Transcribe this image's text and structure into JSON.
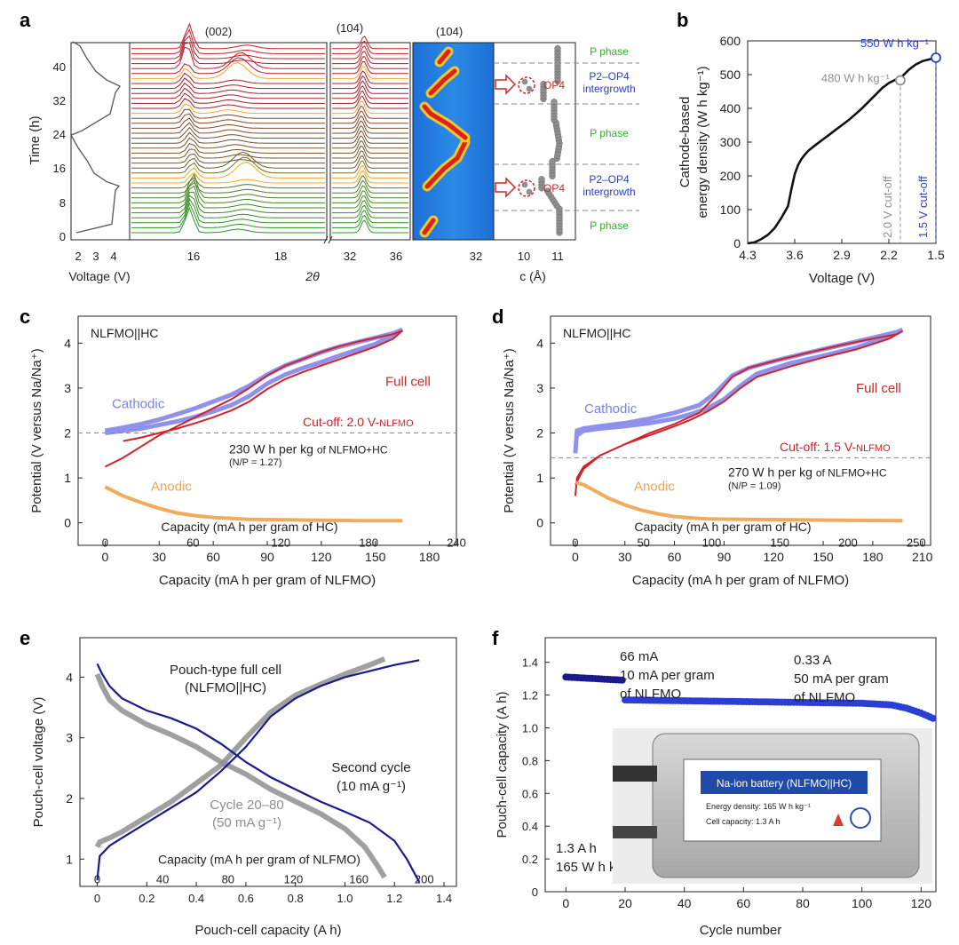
{
  "colors": {
    "axis": "#222222",
    "grid_dash": "#8a8a8a",
    "cathodic": "#7b7fe8",
    "full_cell": "#d2232a",
    "anodic": "#f0a24a",
    "navy": "#1a1a8c",
    "grey": "#8f8f8f",
    "blue": "#2b3fd4",
    "green": "#2ca02c",
    "pphase": "#3aaa35",
    "op4": "#d2232a",
    "intergrowth": "#2b3fbf",
    "orange_band": "#f5a623"
  },
  "panels": {
    "a": {
      "label": "a",
      "ylabel": "Time (h)",
      "yticks": [
        "0",
        "8",
        "16",
        "24",
        "32",
        "40"
      ],
      "voltage_xticks": [
        "2",
        "3",
        "4"
      ],
      "voltage_xlabel": "Voltage (V)",
      "xrd1_xticks": [
        "16",
        "18"
      ],
      "xrd2_xticks": [
        "32",
        "36"
      ],
      "theta_label": "2θ",
      "peak_002": "(002)",
      "peak_104_a": "(104)",
      "peak_104_b": "(104)",
      "contour_xticks": [
        "32"
      ],
      "c_xticks": [
        "10",
        "11"
      ],
      "c_xlabel": "c (Å)",
      "op4_label": "OP4",
      "phase_labels": [
        {
          "text": "P phase",
          "kind": "p"
        },
        {
          "text": "P2–OP4",
          "kind": "i"
        },
        {
          "text": "intergrowth",
          "kind": "i"
        },
        {
          "text": "P phase",
          "kind": "p"
        },
        {
          "text": "P2–OP4",
          "kind": "i"
        },
        {
          "text": "intergrowth",
          "kind": "i"
        },
        {
          "text": "P phase",
          "kind": "p"
        }
      ]
    },
    "b": {
      "label": "b"
    },
    "c": {
      "label": "c"
    },
    "d": {
      "label": "d"
    },
    "e": {
      "label": "e"
    },
    "f": {
      "label": "f",
      "photo_title": "Na-ion battery (NLFMO||HC)",
      "photo_line1": "Energy density: 165 W h kg⁻¹",
      "photo_line2": "Cell capacity: 1.3 A h"
    }
  },
  "chart_data": [
    {
      "id": "b",
      "type": "line",
      "xlabel": "Voltage (V)",
      "ylabel_line1": "Cathode-based",
      "ylabel_line2": "energy density (W h kg⁻¹)",
      "xlim": [
        4.3,
        1.5
      ],
      "ylim": [
        0,
        600
      ],
      "xticks": [
        "4.3",
        "3.6",
        "2.9",
        "2.2",
        "1.5"
      ],
      "yticks": [
        "0",
        "100",
        "200",
        "300",
        "400",
        "500",
        "600"
      ],
      "series": [
        {
          "x": [
            4.3,
            4.2,
            4.1,
            4.0,
            3.9,
            3.8,
            3.7,
            3.65,
            3.6,
            3.55,
            3.5,
            3.45,
            3.4,
            3.3,
            3.2,
            3.1,
            3.0,
            2.9,
            2.8,
            2.7,
            2.6,
            2.5,
            2.4,
            2.3,
            2.2,
            2.1,
            2.0,
            1.9,
            1.8,
            1.7,
            1.6,
            1.5
          ],
          "y": [
            0,
            3,
            12,
            25,
            45,
            75,
            110,
            160,
            205,
            232,
            250,
            263,
            274,
            290,
            305,
            320,
            335,
            350,
            365,
            382,
            400,
            420,
            440,
            460,
            475,
            485,
            495,
            515,
            530,
            540,
            545,
            550
          ]
        }
      ],
      "annotations": [
        {
          "text": "480 W h kg⁻¹",
          "x": 2.03,
          "y": 483,
          "color": "grey"
        },
        {
          "text": "550 W h kg⁻¹",
          "x": 1.5,
          "y": 550,
          "color": "blue"
        }
      ],
      "cutoffs": [
        {
          "x": 2.03,
          "text": "2.0 V cut-off",
          "color": "grey"
        },
        {
          "x": 1.5,
          "text": "1.5 V cut-off",
          "color": "blue"
        }
      ]
    },
    {
      "id": "c",
      "type": "line",
      "inset_title": "NLFMO||HC",
      "ylabel": "Potential (V versus Na/Na⁺)",
      "xlabel": "Capacity (mA h per gram of NLFMO)",
      "top_xlabel": "Capacity (mA h per gram of HC)",
      "xlim": [
        -15,
        195
      ],
      "ylim": [
        -0.5,
        4.6
      ],
      "xticks": [
        0,
        30,
        60,
        90,
        120,
        150,
        180
      ],
      "top_xticks": [
        "0",
        "60",
        "120",
        "180",
        "240"
      ],
      "yticks": [
        0,
        1,
        2,
        3,
        4
      ],
      "cutoff_y": 2.0,
      "series_labels": {
        "cathodic": "Cathodic",
        "full": "Full cell",
        "anodic": "Anodic"
      },
      "cutoff_text": "Cut-off: 2.0 V-",
      "cutoff_text_sub": "NLFMO",
      "energy_text": "230 W h per kg",
      "energy_text_sub": "of NLFMO+HC",
      "np_text": "(N/P = 1.27)",
      "series": [
        {
          "name": "Cathodic",
          "x": [
            0,
            10,
            20,
            30,
            40,
            50,
            60,
            70,
            80,
            90,
            100,
            110,
            120,
            130,
            140,
            150,
            160,
            165,
            160,
            150,
            140,
            130,
            120,
            110,
            100,
            90,
            80,
            70,
            60,
            50,
            40,
            30,
            20,
            10,
            0
          ],
          "y": [
            2.05,
            2.12,
            2.2,
            2.3,
            2.42,
            2.55,
            2.7,
            2.85,
            3.05,
            3.3,
            3.5,
            3.65,
            3.8,
            3.92,
            4.02,
            4.12,
            4.22,
            4.3,
            4.18,
            3.98,
            3.85,
            3.72,
            3.58,
            3.45,
            3.3,
            3.1,
            2.82,
            2.62,
            2.48,
            2.36,
            2.26,
            2.18,
            2.1,
            2.05,
            2.0
          ]
        },
        {
          "name": "Full cell",
          "x": [
            0,
            10,
            20,
            30,
            40,
            50,
            60,
            70,
            80,
            90,
            100,
            110,
            120,
            130,
            140,
            150,
            160,
            165,
            160,
            150,
            140,
            130,
            120,
            110,
            100,
            90,
            80,
            70,
            60,
            50,
            40,
            30,
            20,
            10
          ],
          "y": [
            1.25,
            1.45,
            1.7,
            1.95,
            2.15,
            2.35,
            2.55,
            2.75,
            3.0,
            3.28,
            3.5,
            3.65,
            3.8,
            3.93,
            4.03,
            4.12,
            4.2,
            4.28,
            4.1,
            3.92,
            3.78,
            3.64,
            3.5,
            3.36,
            3.2,
            2.98,
            2.7,
            2.5,
            2.35,
            2.22,
            2.1,
            2.0,
            1.9,
            1.82
          ]
        },
        {
          "name": "Anodic",
          "x": [
            0,
            5,
            10,
            20,
            30,
            40,
            50,
            60,
            70,
            80,
            100,
            120,
            140,
            165
          ],
          "y": [
            0.8,
            0.7,
            0.6,
            0.45,
            0.32,
            0.22,
            0.16,
            0.12,
            0.1,
            0.08,
            0.07,
            0.06,
            0.05,
            0.05
          ]
        }
      ]
    },
    {
      "id": "d",
      "type": "line",
      "inset_title": "NLFMO||HC",
      "ylabel": "Potential (V versus Na/Na⁺)",
      "xlabel": "Capacity (mA h per gram of NLFMO)",
      "top_xlabel": "Capacity (mA h per gram of HC)",
      "xlim": [
        -15,
        215
      ],
      "ylim": [
        -0.5,
        4.6
      ],
      "xticks": [
        0,
        30,
        60,
        90,
        120,
        150,
        180,
        210
      ],
      "top_xticks": [
        "0",
        "50",
        "100",
        "150",
        "200",
        "250"
      ],
      "yticks": [
        0,
        1,
        2,
        3,
        4
      ],
      "cutoff_y": 1.45,
      "series_labels": {
        "cathodic": "Cathodic",
        "full": "Full cell",
        "anodic": "Anodic"
      },
      "cutoff_text": "Cut-off: 1.5 V-",
      "cutoff_text_sub": "NLFMO",
      "energy_text": "270 W h per kg",
      "energy_text_sub": "of NLFMO+HC",
      "np_text": "(N/P = 1.09)",
      "series": [
        {
          "name": "Cathodic",
          "x": [
            0,
            1,
            5,
            15,
            30,
            45,
            60,
            75,
            85,
            95,
            105,
            120,
            140,
            160,
            180,
            195,
            198,
            190,
            170,
            150,
            130,
            110,
            100,
            90,
            80,
            70,
            60,
            45,
            30,
            15,
            5,
            1
          ],
          "y": [
            1.55,
            2.05,
            2.1,
            2.15,
            2.22,
            2.32,
            2.45,
            2.62,
            2.9,
            3.28,
            3.45,
            3.6,
            3.78,
            3.95,
            4.12,
            4.25,
            4.3,
            4.15,
            3.9,
            3.72,
            3.55,
            3.32,
            3.05,
            2.75,
            2.55,
            2.42,
            2.32,
            2.22,
            2.15,
            2.1,
            2.05,
            1.95
          ]
        },
        {
          "name": "Full cell",
          "x": [
            0,
            1,
            5,
            15,
            30,
            45,
            60,
            75,
            85,
            95,
            105,
            120,
            140,
            160,
            180,
            195,
            198,
            190,
            170,
            150,
            130,
            110,
            100,
            90,
            80,
            70,
            60,
            45,
            30,
            15,
            5,
            0
          ],
          "y": [
            0.6,
            1.0,
            1.25,
            1.5,
            1.75,
            2.0,
            2.2,
            2.45,
            2.82,
            3.25,
            3.45,
            3.6,
            3.78,
            3.95,
            4.1,
            4.2,
            4.27,
            4.1,
            3.86,
            3.68,
            3.48,
            3.25,
            3.0,
            2.7,
            2.48,
            2.3,
            2.15,
            1.95,
            1.75,
            1.5,
            1.2,
            0.85
          ]
        },
        {
          "name": "Anodic",
          "x": [
            0,
            5,
            10,
            20,
            30,
            40,
            50,
            60,
            70,
            80,
            100,
            130,
            160,
            198
          ],
          "y": [
            0.9,
            0.85,
            0.75,
            0.55,
            0.4,
            0.28,
            0.2,
            0.14,
            0.11,
            0.09,
            0.08,
            0.07,
            0.06,
            0.05
          ]
        }
      ]
    },
    {
      "id": "e",
      "type": "line",
      "ylabel": "Pouch-cell voltage (V)",
      "xlabel": "Pouch-cell capacity (A h)",
      "top_xlabel": "Capacity (mA h per gram of NLFMO)",
      "xlim": [
        -0.07,
        1.45
      ],
      "ylim": [
        0.55,
        4.65
      ],
      "xticks": [
        "0",
        "0.2",
        "0.4",
        "0.6",
        "0.8",
        "1.0",
        "1.2",
        "1.4"
      ],
      "top_xticks": [
        "0",
        "40",
        "80",
        "120",
        "160",
        "200"
      ],
      "yticks": [
        1,
        2,
        3,
        4
      ],
      "labels": {
        "title1": "Pouch-type full cell",
        "title2": "(NLFMO||HC)",
        "second1": "Second cycle",
        "second2": "(10 mA g⁻¹)",
        "cycle1": "Cycle 20–80",
        "cycle2": "(50 mA g⁻¹)"
      },
      "series": [
        {
          "name": "Second cycle charge",
          "x": [
            0,
            0.01,
            0.05,
            0.1,
            0.2,
            0.3,
            0.4,
            0.5,
            0.6,
            0.7,
            0.8,
            0.9,
            1.0,
            1.1,
            1.2,
            1.3
          ],
          "y": [
            0.65,
            1.05,
            1.22,
            1.35,
            1.6,
            1.85,
            2.1,
            2.45,
            2.85,
            3.35,
            3.65,
            3.85,
            4.0,
            4.1,
            4.2,
            4.28
          ]
        },
        {
          "name": "Second cycle discharge",
          "x": [
            0,
            0.02,
            0.05,
            0.1,
            0.2,
            0.3,
            0.4,
            0.5,
            0.6,
            0.7,
            0.8,
            0.9,
            1.0,
            1.1,
            1.2,
            1.25,
            1.3
          ],
          "y": [
            4.22,
            4.05,
            3.85,
            3.65,
            3.45,
            3.32,
            3.15,
            2.9,
            2.6,
            2.35,
            2.15,
            1.95,
            1.78,
            1.6,
            1.3,
            1.0,
            0.62
          ]
        },
        {
          "name": "Cycle 20-80 charge",
          "x": [
            0,
            0.01,
            0.05,
            0.1,
            0.2,
            0.3,
            0.4,
            0.5,
            0.6,
            0.7,
            0.8,
            0.9,
            1.0,
            1.1,
            1.16
          ],
          "y": [
            1.2,
            1.28,
            1.35,
            1.45,
            1.7,
            1.95,
            2.25,
            2.55,
            3.0,
            3.42,
            3.7,
            3.88,
            4.05,
            4.2,
            4.3
          ]
        },
        {
          "name": "Cycle 20-80 discharge",
          "x": [
            0,
            0.02,
            0.05,
            0.1,
            0.2,
            0.3,
            0.4,
            0.5,
            0.6,
            0.7,
            0.8,
            0.9,
            1.0,
            1.08,
            1.13,
            1.16
          ],
          "y": [
            4.05,
            3.85,
            3.62,
            3.45,
            3.22,
            3.05,
            2.85,
            2.6,
            2.4,
            2.15,
            1.95,
            1.75,
            1.5,
            1.2,
            0.9,
            0.7
          ]
        }
      ]
    },
    {
      "id": "f",
      "type": "scatter",
      "ylabel": "Pouch-cell capacity (A h)",
      "xlabel": "Cycle number",
      "xlim": [
        -7,
        125
      ],
      "ylim": [
        0,
        1.55
      ],
      "xticks": [
        0,
        20,
        40,
        60,
        80,
        100,
        120
      ],
      "yticks": [
        "0",
        "0.2",
        "0.4",
        "0.6",
        "0.8",
        "1.0",
        "1.2",
        "1.4"
      ],
      "labels": {
        "rate1_a": "66 mA",
        "rate1_b": "10 mA per gram",
        "rate1_c": "of NLFMO",
        "rate2_a": "0.33 A",
        "rate2_b": "50 mA per gram",
        "rate2_c": "of NLFMO",
        "spec_a": "1.3 A h",
        "spec_b": "165 W h kg⁻¹"
      },
      "series": [
        {
          "name": "10 mA g⁻¹",
          "x": [
            0,
            20
          ],
          "y": [
            1.31,
            1.29
          ],
          "color": "navy"
        },
        {
          "name": "50 mA g⁻¹",
          "x": [
            20,
            40,
            60,
            80,
            100,
            110,
            115,
            120,
            125
          ],
          "y": [
            1.17,
            1.165,
            1.16,
            1.155,
            1.15,
            1.14,
            1.12,
            1.09,
            1.05
          ],
          "color": "blue"
        }
      ]
    }
  ]
}
